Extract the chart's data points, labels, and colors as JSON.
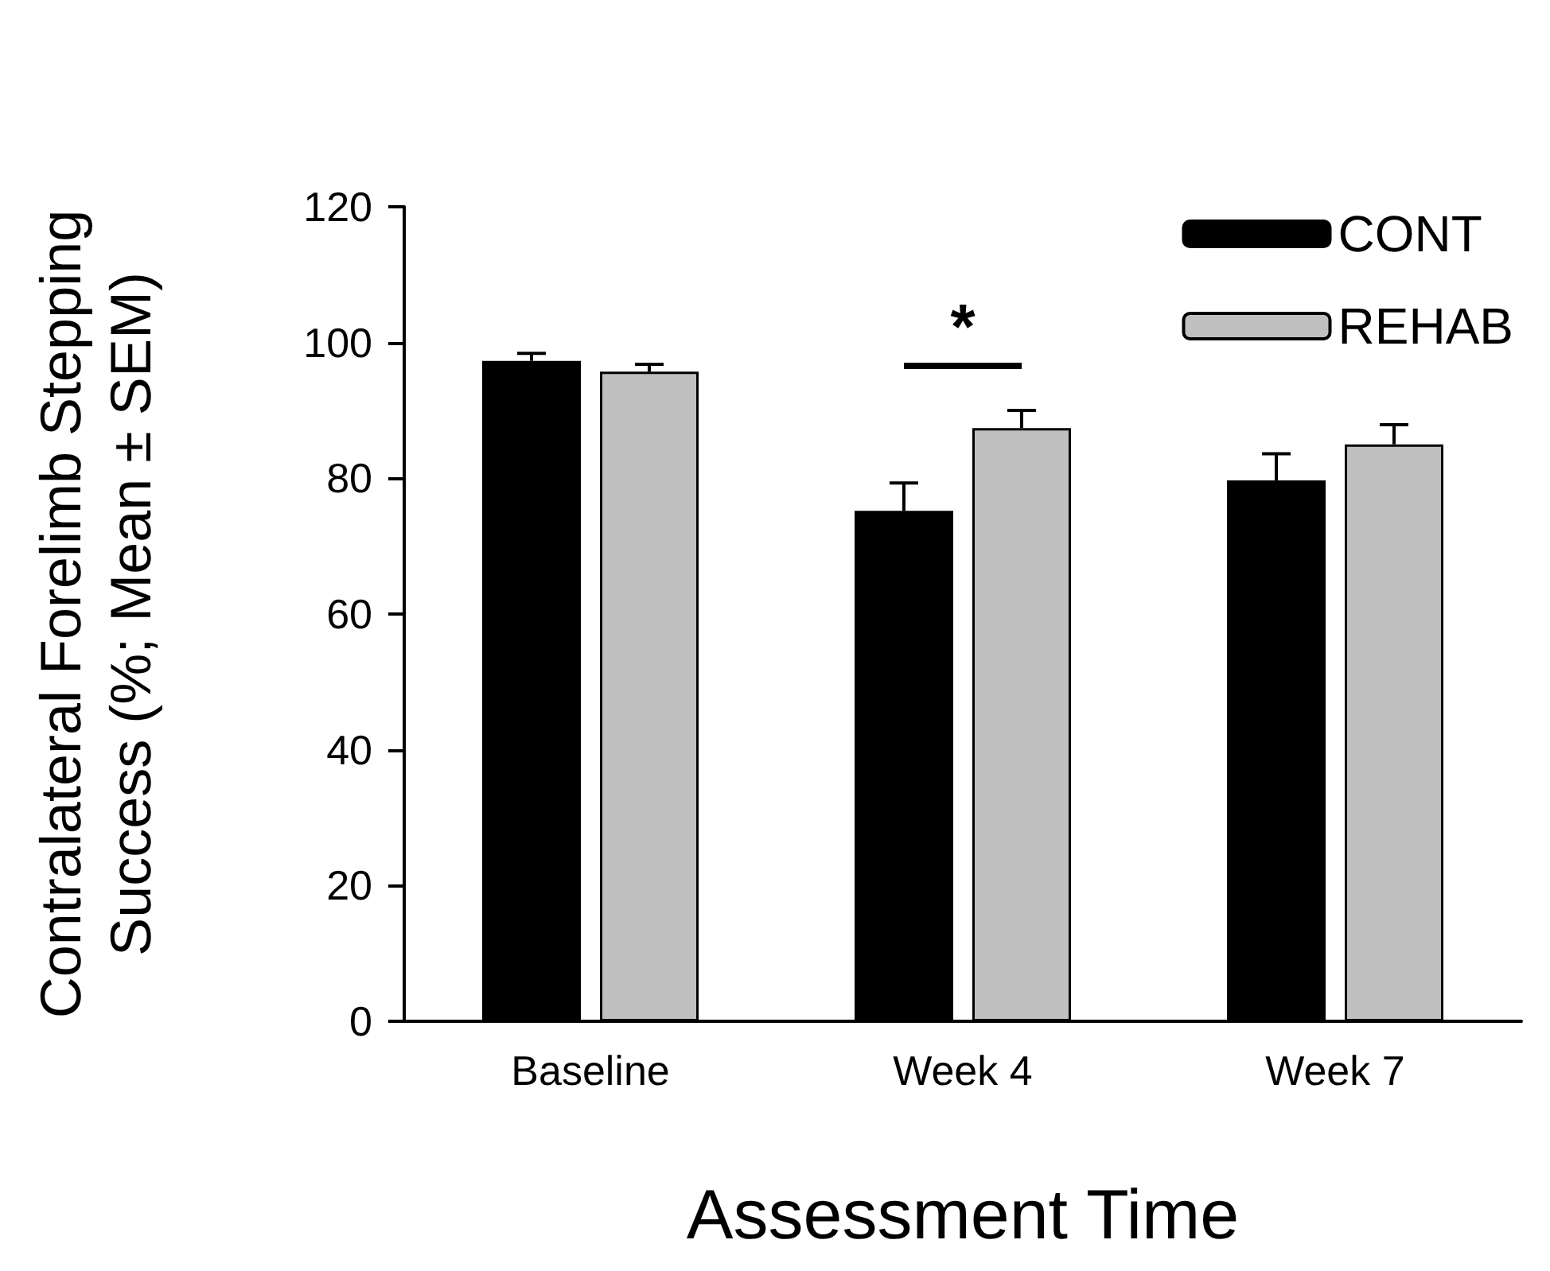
{
  "chart_data": {
    "type": "bar",
    "xlabel": "Assessment Time",
    "ylabel": "Contralateral Forelimb Stepping\nSuccess (%; Mean ± SEM)",
    "categories": [
      "Baseline",
      "Week 4",
      "Week 7"
    ],
    "series": [
      {
        "name": "CONT",
        "color": "#000000",
        "values": [
          97.3,
          75.2,
          79.7
        ],
        "errors": [
          [
            97.3,
            98.4
          ],
          [
            75.2,
            79.3
          ],
          [
            79.7,
            83.6
          ]
        ]
      },
      {
        "name": "REHAB",
        "color": "#c0c0c0",
        "values": [
          95.7,
          87.4,
          85.0
        ],
        "errors": [
          [
            95.7,
            96.8
          ],
          [
            87.4,
            90.0
          ],
          [
            85.0,
            87.9
          ]
        ]
      }
    ],
    "ylim": [
      0,
      120
    ],
    "yticks": [
      0,
      20,
      40,
      60,
      80,
      100,
      120
    ],
    "grid": false,
    "legend": "top right",
    "annotations": [
      "*"
    ]
  }
}
